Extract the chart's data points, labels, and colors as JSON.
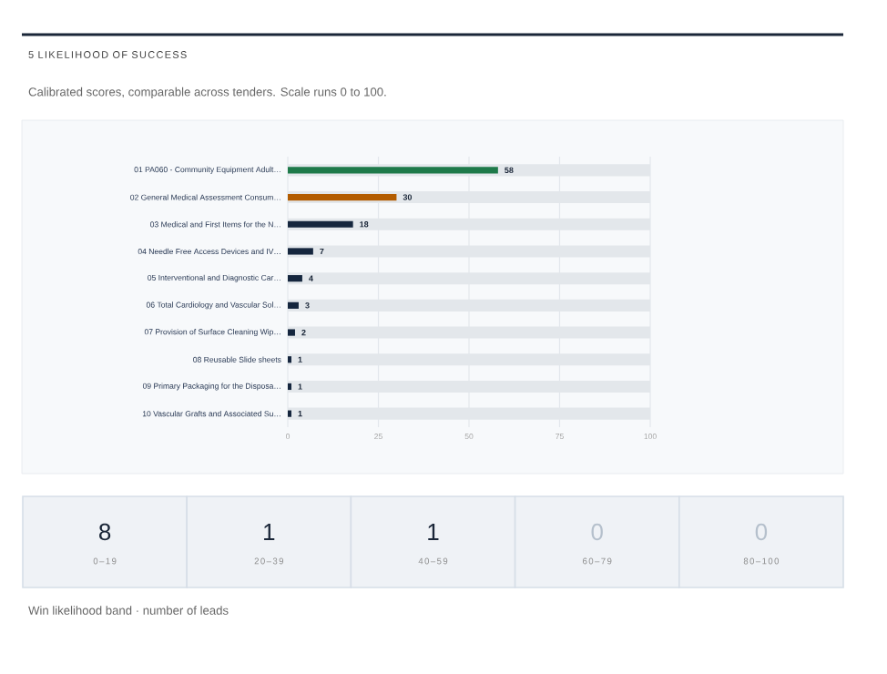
{
  "chart_data": [
    {
      "type": "bar",
      "orientation": "horizontal",
      "title": "5 LIKELIHOOD OF SUCCESS",
      "subtitle": "Calibrated scores, comparable across tenders. Scale runs 0 to 100.",
      "categories": [
        "01 PA060 - Community Equipment Adult…",
        "02 General Medical Assessment Consum…",
        "03 Medical and First Items for the N…",
        "04 Needle Free Access Devices and IV…",
        "05 Interventional and Diagnostic Car…",
        "06 Total Cardiology and Vascular Sol…",
        "07 Provision of Surface Cleaning Wip…",
        "08 Reusable Slide sheets",
        "09 Primary Packaging for the Disposa…",
        "10 Vascular Grafts and Associated Su…"
      ],
      "values": [
        58,
        30,
        18,
        7,
        4,
        3,
        2,
        1,
        1,
        1
      ],
      "value_labels": [
        "58",
        "30",
        "18",
        "7",
        "4",
        "3",
        "2",
        "1",
        "1",
        "1"
      ],
      "colors": [
        "#1e7a4a",
        "#b35c00",
        "#15263e",
        "#15263e",
        "#15263e",
        "#15263e",
        "#15263e",
        "#15263e",
        "#15263e",
        "#15263e"
      ],
      "xlim": [
        0,
        100
      ],
      "xticks": [
        0,
        25,
        50,
        75,
        100
      ],
      "grid": "x"
    },
    {
      "type": "other",
      "categories": [
        "0–19",
        "20–39",
        "40–59",
        "60–79",
        "80–100"
      ],
      "values": [
        8,
        1,
        1,
        0,
        0
      ],
      "value_labels": [
        "8",
        "1",
        "1",
        "0",
        "0"
      ],
      "xlabel": "Win likelihood band · number of leads"
    }
  ]
}
